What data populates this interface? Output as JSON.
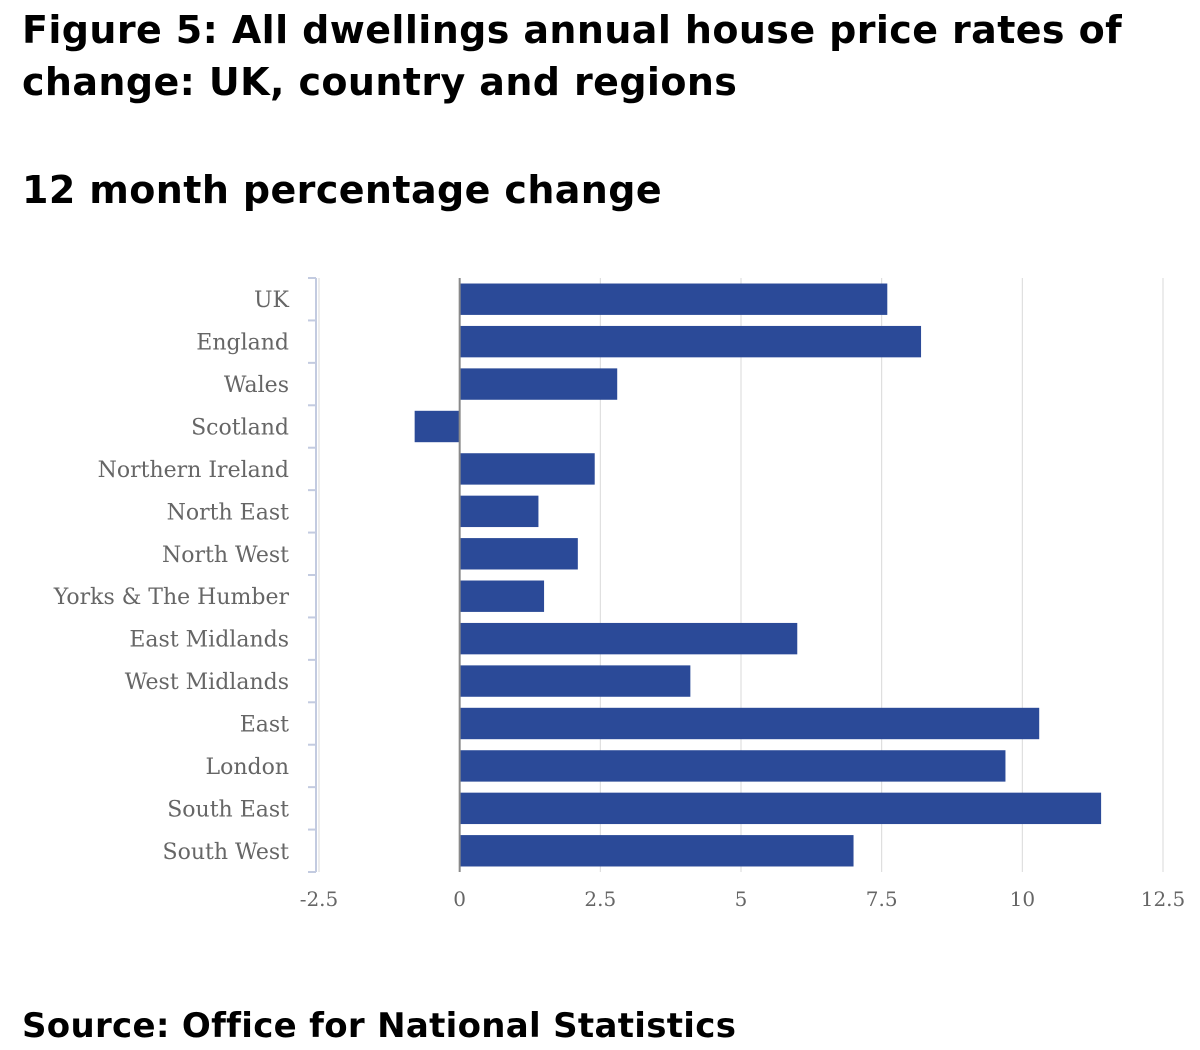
{
  "figure": {
    "title": "Figure 5: All dwellings annual house price rates of change: UK, country and regions",
    "subtitle": "12 month percentage change",
    "source": "Source: Office for National Statistics"
  },
  "colors": {
    "bar": "#2b4a98",
    "grid": "#d9d9d9",
    "axis": "#c3cbe0",
    "label": "#666666"
  },
  "chart_data": {
    "type": "bar",
    "orientation": "horizontal",
    "categories": [
      "UK",
      "England",
      "Wales",
      "Scotland",
      "Northern Ireland",
      "North East",
      "North West",
      "Yorks & The Humber",
      "East Midlands",
      "West Midlands",
      "East",
      "London",
      "South East",
      "South West"
    ],
    "values": [
      7.6,
      8.2,
      2.8,
      -0.8,
      2.4,
      1.4,
      2.1,
      1.5,
      6.0,
      4.1,
      10.3,
      9.7,
      11.4,
      7.0
    ],
    "xlim": [
      -2.5,
      12.5
    ],
    "xticks": [
      -2.5,
      0,
      2.5,
      5,
      7.5,
      10,
      12.5
    ],
    "xtick_labels": [
      "-2.5",
      "0",
      "2.5",
      "5",
      "7.5",
      "10",
      "12.5"
    ],
    "xlabel": "",
    "ylabel": "",
    "grid": true,
    "legend": "none",
    "title": "12 month percentage change"
  }
}
